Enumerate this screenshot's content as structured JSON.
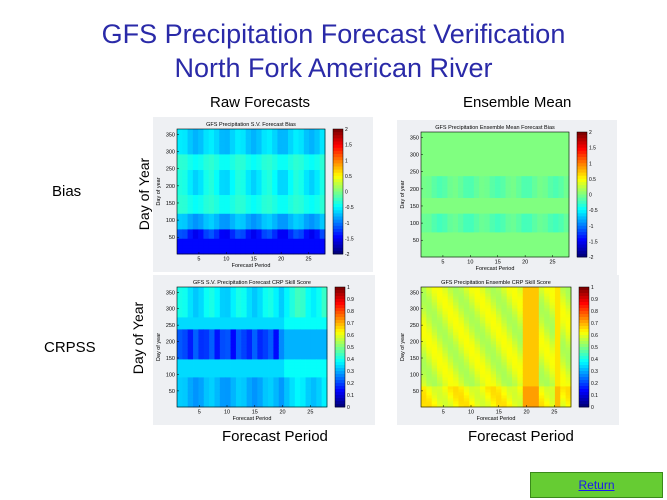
{
  "title_line1": "GFS Precipitation Forecast Verification",
  "title_line2": "North Fork American River",
  "col_headers": {
    "raw": "Raw Forecasts",
    "ens": "Ensemble Mean"
  },
  "row_labels": {
    "bias": "Bias",
    "crpss": "CRPSS"
  },
  "side_ylabel": "Day of Year",
  "bottom_xlabel": "Forecast Period",
  "return_label": "Return",
  "chart_data": [
    {
      "type": "heatmap",
      "title": "GFS Precipitation S.V. Forecast Bias",
      "xlabel": "Forecast Period",
      "ylabel": "Day of year",
      "xlim": [
        1,
        28
      ],
      "ylim": [
        1,
        366
      ],
      "xticks": [
        5,
        10,
        15,
        20,
        25
      ],
      "yticks": [
        50,
        100,
        150,
        200,
        250,
        300,
        350
      ],
      "colorbar": {
        "min": -2,
        "max": 2,
        "ticks": [
          "2",
          "1.5",
          "1",
          "0.5",
          "0",
          "-0.5",
          "-1",
          "-1.5",
          "-2"
        ]
      },
      "pattern": "bias_raw"
    },
    {
      "type": "heatmap",
      "title": "GFS Precipitation Ensemble Mean Forecast Bias",
      "xlabel": "Forecast Period",
      "ylabel": "Day of year",
      "xlim": [
        1,
        28
      ],
      "ylim": [
        1,
        366
      ],
      "xticks": [
        5,
        10,
        15,
        20,
        25
      ],
      "yticks": [
        50,
        100,
        150,
        200,
        250,
        300,
        350
      ],
      "colorbar": {
        "min": -2,
        "max": 2,
        "ticks": [
          "2",
          "1.5",
          "1",
          "0.5",
          "0",
          "-0.5",
          "-1",
          "-1.5",
          "-2"
        ]
      },
      "pattern": "bias_ens"
    },
    {
      "type": "heatmap",
      "title": "GFS S.V. Precipitation Forecast CRP Skill Score",
      "xlabel": "Forecast Period",
      "ylabel": "Day of year",
      "xlim": [
        1,
        28
      ],
      "ylim": [
        1,
        366
      ],
      "xticks": [
        5,
        10,
        15,
        20,
        25
      ],
      "yticks": [
        50,
        100,
        150,
        200,
        250,
        300,
        350
      ],
      "colorbar": {
        "min": 0,
        "max": 1,
        "ticks": [
          "1",
          "0.9",
          "0.8",
          "0.7",
          "0.6",
          "0.5",
          "0.4",
          "0.3",
          "0.2",
          "0.1",
          "0"
        ]
      },
      "pattern": "crpss_raw"
    },
    {
      "type": "heatmap",
      "title": "GFS Precipitation Ensemble CRP Skill Score",
      "xlabel": "Forecast Period",
      "ylabel": "Day of year",
      "xlim": [
        1,
        28
      ],
      "ylim": [
        1,
        366
      ],
      "xticks": [
        5,
        10,
        15,
        20,
        25
      ],
      "yticks": [
        50,
        100,
        150,
        200,
        250,
        300,
        350
      ],
      "colorbar": {
        "min": 0,
        "max": 1,
        "ticks": [
          "1",
          "0.9",
          "0.8",
          "0.7",
          "0.6",
          "0.5",
          "0.4",
          "0.3",
          "0.2",
          "0.1",
          "0"
        ]
      },
      "pattern": "crpss_ens"
    }
  ]
}
